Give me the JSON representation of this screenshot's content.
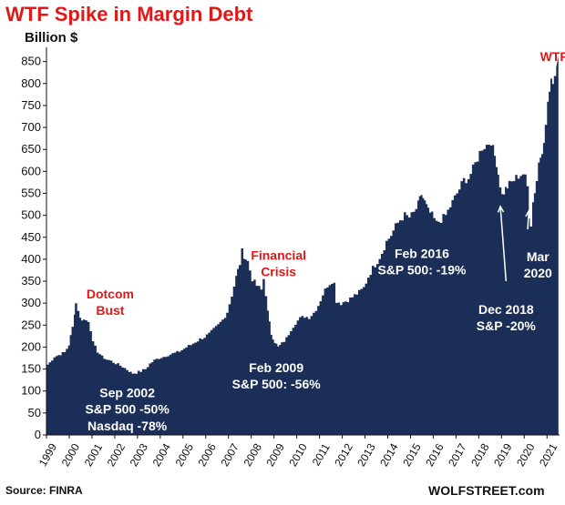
{
  "header": {
    "title": "WTF Spike in Margin Debt",
    "unit_label": "Billion $"
  },
  "footer": {
    "source": "Source: FINRA",
    "brand": "WOLFSTREET.com"
  },
  "colors": {
    "area": "#1b2e57",
    "title": "#e01818",
    "text": "#111111",
    "annotation_white": "#ffffff",
    "annotation_dark": "#1b2e57",
    "annotation_red": "#e01818"
  },
  "chart_data": {
    "type": "area",
    "title": "WTF Spike in Margin Debt",
    "ylabel": "Billion $",
    "xlabel": "",
    "ylim": [
      0,
      870
    ],
    "xlim": [
      1999.0,
      2021.55
    ],
    "grid": false,
    "y_ticks": [
      0,
      50,
      100,
      150,
      200,
      250,
      300,
      350,
      400,
      450,
      500,
      550,
      600,
      650,
      700,
      750,
      800,
      850
    ],
    "x_ticks": [
      "1999",
      "2000",
      "2001",
      "2002",
      "2003",
      "2004",
      "2005",
      "2006",
      "2007",
      "2008",
      "2009",
      "2010",
      "2011",
      "2012",
      "2013",
      "2014",
      "2015",
      "2016",
      "2017",
      "2018",
      "2019",
      "2020",
      "2021"
    ],
    "series": [
      {
        "values": [
          [
            1999.0,
            160
          ],
          [
            1999.1,
            165
          ],
          [
            1999.3,
            178
          ],
          [
            1999.5,
            182
          ],
          [
            1999.75,
            188
          ],
          [
            1999.95,
            205
          ],
          [
            2000.1,
            245
          ],
          [
            2000.2,
            278
          ],
          [
            2000.25,
            300
          ],
          [
            2000.35,
            285
          ],
          [
            2000.45,
            265
          ],
          [
            2000.6,
            262
          ],
          [
            2000.8,
            260
          ],
          [
            2000.9,
            240
          ],
          [
            2001.0,
            210
          ],
          [
            2001.2,
            190
          ],
          [
            2001.4,
            178
          ],
          [
            2001.6,
            172
          ],
          [
            2001.8,
            168
          ],
          [
            2002.0,
            163
          ],
          [
            2002.2,
            158
          ],
          [
            2002.4,
            152
          ],
          [
            2002.6,
            145
          ],
          [
            2002.75,
            140
          ],
          [
            2002.9,
            142
          ],
          [
            2003.1,
            145
          ],
          [
            2003.3,
            150
          ],
          [
            2003.5,
            162
          ],
          [
            2003.7,
            170
          ],
          [
            2003.9,
            175
          ],
          [
            2004.1,
            178
          ],
          [
            2004.3,
            182
          ],
          [
            2004.5,
            185
          ],
          [
            2004.7,
            188
          ],
          [
            2004.9,
            193
          ],
          [
            2005.1,
            200
          ],
          [
            2005.3,
            205
          ],
          [
            2005.5,
            212
          ],
          [
            2005.7,
            218
          ],
          [
            2005.9,
            223
          ],
          [
            2006.1,
            230
          ],
          [
            2006.3,
            240
          ],
          [
            2006.5,
            250
          ],
          [
            2006.7,
            262
          ],
          [
            2006.9,
            280
          ],
          [
            2007.1,
            318
          ],
          [
            2007.3,
            360
          ],
          [
            2007.45,
            390
          ],
          [
            2007.55,
            418
          ],
          [
            2007.65,
            408
          ],
          [
            2007.8,
            395
          ],
          [
            2007.9,
            375
          ],
          [
            2008.0,
            355
          ],
          [
            2008.2,
            340
          ],
          [
            2008.4,
            330
          ],
          [
            2008.5,
            355
          ],
          [
            2008.6,
            320
          ],
          [
            2008.7,
            280
          ],
          [
            2008.85,
            230
          ],
          [
            2009.0,
            212
          ],
          [
            2009.15,
            200
          ],
          [
            2009.3,
            208
          ],
          [
            2009.5,
            220
          ],
          [
            2009.7,
            240
          ],
          [
            2009.9,
            255
          ],
          [
            2010.1,
            265
          ],
          [
            2010.3,
            270
          ],
          [
            2010.5,
            268
          ],
          [
            2010.7,
            278
          ],
          [
            2010.9,
            295
          ],
          [
            2011.1,
            320
          ],
          [
            2011.3,
            340
          ],
          [
            2011.5,
            350
          ],
          [
            2011.6,
            345
          ],
          [
            2011.7,
            305
          ],
          [
            2011.9,
            300
          ],
          [
            2012.1,
            305
          ],
          [
            2012.3,
            310
          ],
          [
            2012.5,
            318
          ],
          [
            2012.7,
            325
          ],
          [
            2012.9,
            335
          ],
          [
            2013.1,
            360
          ],
          [
            2013.3,
            380
          ],
          [
            2013.5,
            395
          ],
          [
            2013.7,
            415
          ],
          [
            2013.9,
            440
          ],
          [
            2014.1,
            455
          ],
          [
            2014.3,
            475
          ],
          [
            2014.5,
            490
          ],
          [
            2014.7,
            500
          ],
          [
            2014.9,
            495
          ],
          [
            2015.1,
            505
          ],
          [
            2015.3,
            525
          ],
          [
            2015.45,
            548
          ],
          [
            2015.6,
            530
          ],
          [
            2015.75,
            510
          ],
          [
            2015.9,
            500
          ],
          [
            2016.1,
            482
          ],
          [
            2016.3,
            490
          ],
          [
            2016.5,
            500
          ],
          [
            2016.7,
            520
          ],
          [
            2016.9,
            540
          ],
          [
            2017.1,
            560
          ],
          [
            2017.3,
            580
          ],
          [
            2017.5,
            585
          ],
          [
            2017.7,
            605
          ],
          [
            2017.9,
            630
          ],
          [
            2018.1,
            655
          ],
          [
            2018.3,
            660
          ],
          [
            2018.5,
            670
          ],
          [
            2018.6,
            650
          ],
          [
            2018.75,
            620
          ],
          [
            2018.9,
            570
          ],
          [
            2019.0,
            545
          ],
          [
            2019.15,
            560
          ],
          [
            2019.3,
            570
          ],
          [
            2019.5,
            580
          ],
          [
            2019.7,
            590
          ],
          [
            2019.9,
            595
          ],
          [
            2020.0,
            585
          ],
          [
            2020.1,
            565
          ],
          [
            2020.2,
            500
          ],
          [
            2020.25,
            480
          ],
          [
            2020.35,
            530
          ],
          [
            2020.5,
            580
          ],
          [
            2020.6,
            620
          ],
          [
            2020.75,
            650
          ],
          [
            2020.9,
            700
          ],
          [
            2021.0,
            760
          ],
          [
            2021.15,
            800
          ],
          [
            2021.3,
            820
          ],
          [
            2021.4,
            845
          ],
          [
            2021.5,
            862
          ]
        ]
      }
    ],
    "annotations": [
      {
        "lines": [
          "WTF"
        ],
        "x": 2021.3,
        "y": 885,
        "color": "red",
        "size": 16
      },
      {
        "lines": [
          "Dotcom",
          "Bust"
        ],
        "x": 2001.8,
        "y": 340,
        "color": "red"
      },
      {
        "lines": [
          "Financial",
          "Crisis"
        ],
        "x": 2009.2,
        "y": 428,
        "color": "red"
      },
      {
        "lines": [
          "Sep 2002",
          "S&P 500 -50%",
          "Nasdaq -78%"
        ],
        "x": 2002.55,
        "y": 115,
        "color": "white"
      },
      {
        "lines": [
          "Feb 2009",
          "S&P 500: -56%"
        ],
        "x": 2009.1,
        "y": 172,
        "color": "white"
      },
      {
        "lines": [
          "Feb 2016",
          "S&P 500: -19%"
        ],
        "x": 2015.5,
        "y": 432,
        "color": "white"
      },
      {
        "lines": [
          "Dec 2018",
          "S&P -20%"
        ],
        "x": 2019.2,
        "y": 305,
        "color": "white"
      },
      {
        "lines": [
          "Mar",
          "2020"
        ],
        "x": 2020.6,
        "y": 425,
        "color": "white"
      }
    ],
    "arrows": [
      {
        "from": [
          2019.2,
          350
        ],
        "to": [
          2018.95,
          520
        ]
      },
      {
        "from": [
          2020.15,
          468
        ],
        "to": [
          2020.2,
          510
        ]
      }
    ]
  }
}
